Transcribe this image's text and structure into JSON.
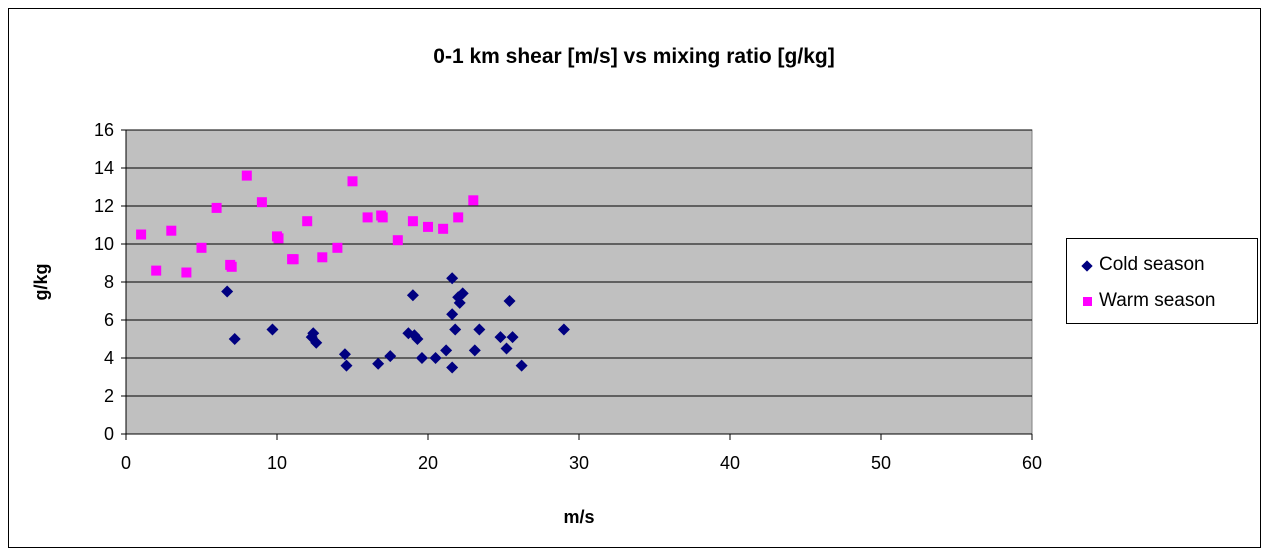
{
  "chart_data": {
    "type": "scatter",
    "title": "0-1 km shear [m/s] vs mixing ratio [g/kg]",
    "xlabel": "m/s",
    "ylabel": "g/kg",
    "xlim": [
      0,
      60
    ],
    "ylim": [
      0,
      16
    ],
    "x_ticks": [
      0,
      10,
      20,
      30,
      40,
      50,
      60
    ],
    "y_ticks": [
      0,
      2,
      4,
      6,
      8,
      10,
      12,
      14,
      16
    ],
    "grid": "horizontal",
    "plot_background": "#c0c0c0",
    "legend_position": "right",
    "series": [
      {
        "name": "Cold season",
        "marker": "diamond",
        "color": "#000080",
        "points": [
          [
            6.7,
            7.5
          ],
          [
            7.2,
            5.0
          ],
          [
            9.7,
            5.5
          ],
          [
            12.3,
            5.1
          ],
          [
            12.4,
            5.3
          ],
          [
            12.6,
            4.8
          ],
          [
            14.5,
            4.2
          ],
          [
            14.6,
            3.6
          ],
          [
            16.7,
            3.7
          ],
          [
            17.5,
            4.1
          ],
          [
            18.7,
            5.3
          ],
          [
            19.0,
            7.3
          ],
          [
            19.1,
            5.2
          ],
          [
            19.3,
            5.0
          ],
          [
            19.6,
            4.0
          ],
          [
            20.5,
            4.0
          ],
          [
            21.2,
            4.4
          ],
          [
            21.6,
            8.2
          ],
          [
            21.6,
            6.3
          ],
          [
            21.6,
            3.5
          ],
          [
            21.8,
            5.5
          ],
          [
            22.0,
            7.2
          ],
          [
            22.1,
            6.9
          ],
          [
            22.3,
            7.4
          ],
          [
            23.1,
            4.4
          ],
          [
            23.4,
            5.5
          ],
          [
            24.8,
            5.1
          ],
          [
            25.2,
            4.5
          ],
          [
            25.4,
            7.0
          ],
          [
            25.6,
            5.1
          ],
          [
            26.2,
            3.6
          ],
          [
            29.0,
            5.5
          ]
        ]
      },
      {
        "name": "Warm season",
        "marker": "square",
        "color": "#ff00ff",
        "points": [
          [
            1.0,
            10.5
          ],
          [
            2.0,
            8.6
          ],
          [
            3.0,
            10.7
          ],
          [
            4.0,
            8.5
          ],
          [
            5.0,
            9.8
          ],
          [
            6.0,
            11.9
          ],
          [
            6.9,
            8.9
          ],
          [
            7.0,
            8.8
          ],
          [
            8.0,
            13.6
          ],
          [
            9.0,
            12.2
          ],
          [
            10.0,
            10.4
          ],
          [
            10.1,
            10.3
          ],
          [
            11.0,
            9.2
          ],
          [
            11.1,
            9.2
          ],
          [
            12.0,
            11.2
          ],
          [
            13.0,
            9.3
          ],
          [
            14.0,
            9.8
          ],
          [
            15.0,
            13.3
          ],
          [
            16.0,
            11.4
          ],
          [
            16.9,
            11.5
          ],
          [
            17.0,
            11.4
          ],
          [
            18.0,
            10.2
          ],
          [
            19.0,
            11.2
          ],
          [
            20.0,
            10.9
          ],
          [
            21.0,
            10.8
          ],
          [
            22.0,
            11.4
          ],
          [
            23.0,
            12.3
          ]
        ]
      }
    ]
  }
}
